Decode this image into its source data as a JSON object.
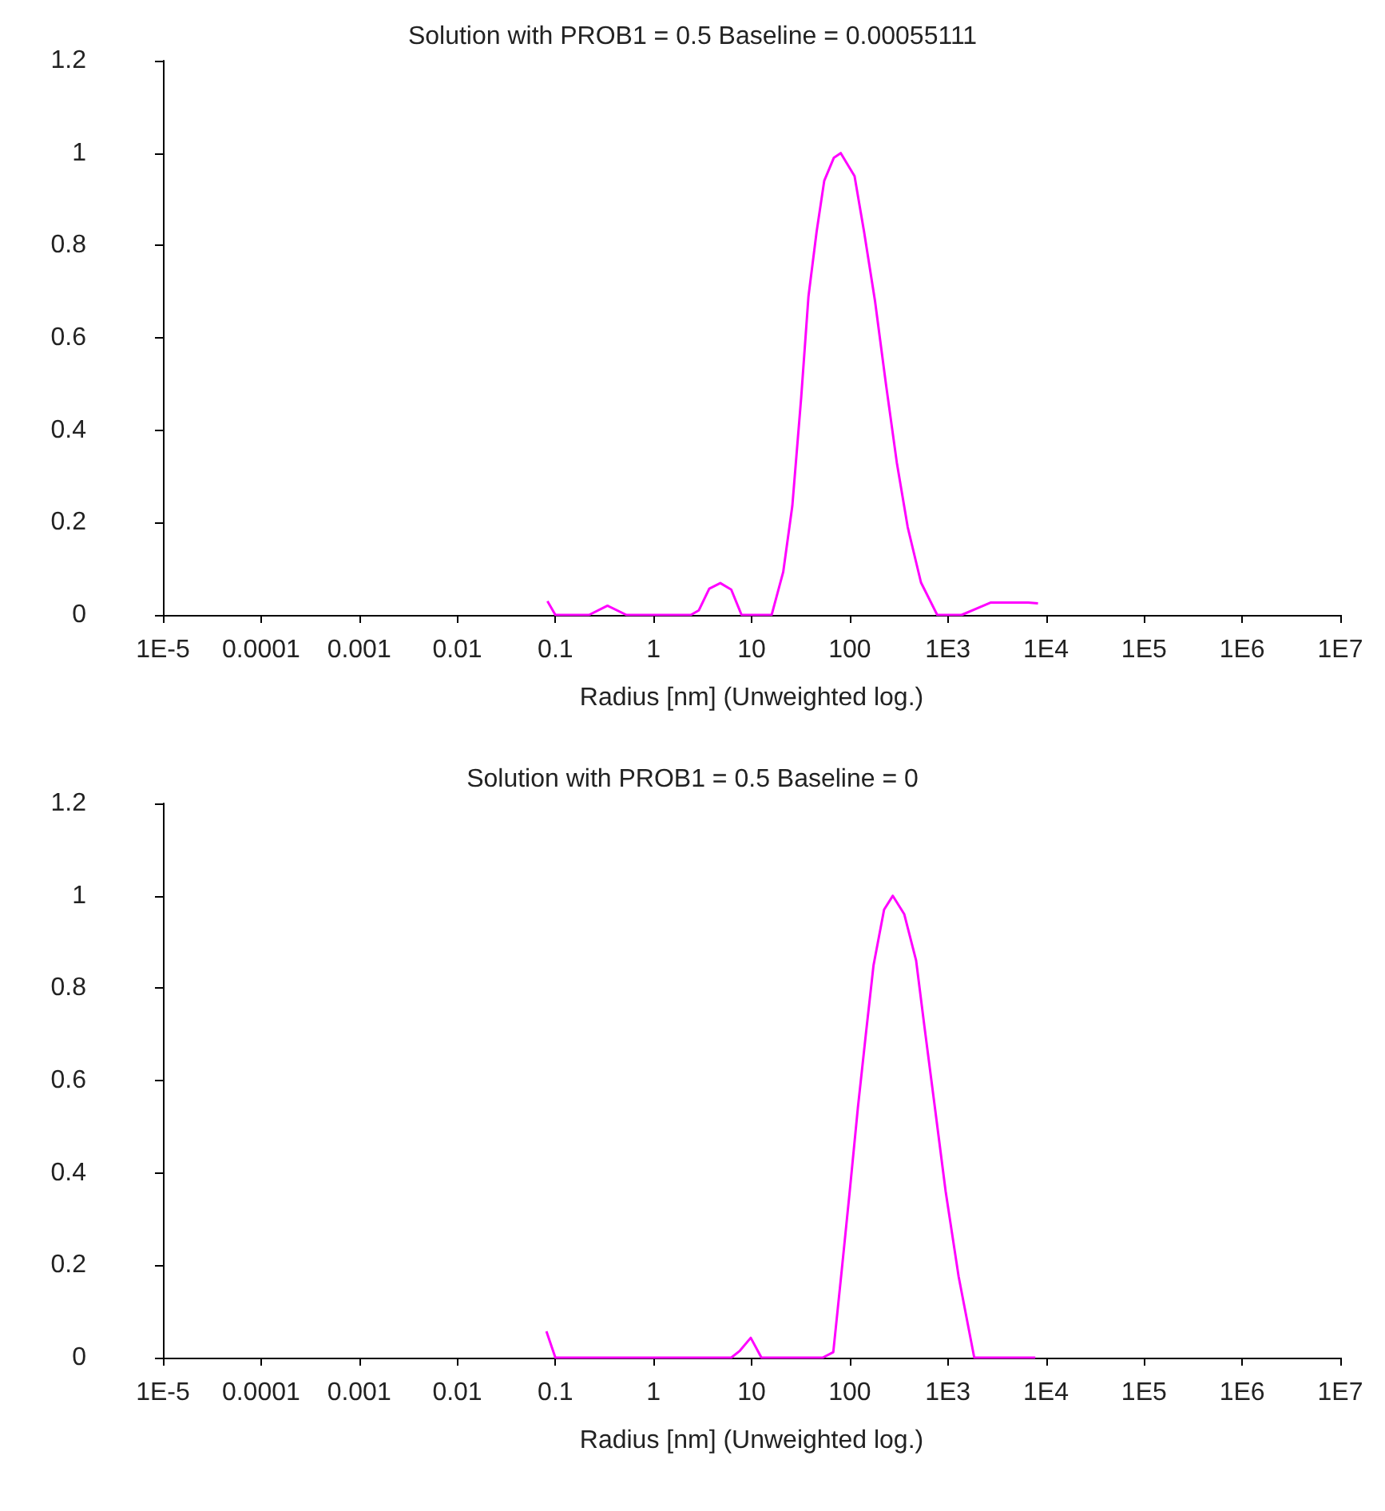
{
  "chart_data": [
    {
      "type": "line",
      "title": "Solution with PROB1 = 0.5 Baseline = 0.00055111",
      "xlabel": "Radius [nm] (Unweighted log.)",
      "log": "x",
      "color": "#ff00ff",
      "x": [
        0.083,
        0.1,
        0.22,
        0.34,
        0.53,
        2.4,
        2.9,
        3.7,
        4.8,
        6.2,
        7.9,
        16,
        21,
        26,
        32,
        38,
        46,
        55,
        69,
        81,
        112,
        140,
        181,
        234,
        302,
        390,
        533,
        780,
        1380,
        2750,
        6600,
        8300
      ],
      "values": [
        0.03,
        0,
        0,
        0.02,
        0,
        0,
        0.01,
        0.057,
        0.069,
        0.055,
        0,
        0,
        0.093,
        0.236,
        0.47,
        0.69,
        0.83,
        0.94,
        0.99,
        1.0,
        0.95,
        0.83,
        0.68,
        0.5,
        0.33,
        0.19,
        0.07,
        0,
        0,
        0.027,
        0.027,
        0.025
      ],
      "xlim": [
        1e-05,
        10000000
      ],
      "xticks": [
        {
          "value": 1e-05,
          "label": "1E-5"
        },
        0.0001,
        0.001,
        0.01,
        0.1,
        1,
        10,
        100,
        {
          "value": 1000,
          "label": "1E3"
        },
        {
          "value": 10000,
          "label": "1E4"
        },
        {
          "value": 100000,
          "label": "1E5"
        },
        {
          "value": 1000000,
          "label": "1E6"
        },
        {
          "value": 10000000,
          "label": "1E7"
        }
      ],
      "ylim": [
        0,
        1.2
      ],
      "yticks": [
        0,
        0.2,
        0.4,
        0.6,
        0.8,
        1,
        1.2
      ]
    },
    {
      "type": "line",
      "title": "Solution with PROB1 = 0.5 Baseline = 0",
      "xlabel": "Radius [nm] (Unweighted log.)",
      "log": "x",
      "color": "#ff00ff",
      "x": [
        0.081,
        0.1,
        6.2,
        7.6,
        9.8,
        12.6,
        53,
        68,
        83,
        100,
        121,
        146,
        175,
        224,
        275,
        360,
        475,
        575,
        740,
        950,
        1290,
        1860,
        7800
      ],
      "values": [
        0.057,
        0,
        0,
        0.015,
        0.043,
        0,
        0,
        0.012,
        0.19,
        0.36,
        0.54,
        0.7,
        0.85,
        0.97,
        1.0,
        0.96,
        0.86,
        0.72,
        0.54,
        0.36,
        0.175,
        0,
        0
      ],
      "xlim": [
        1e-05,
        10000000
      ],
      "xticks": [
        {
          "value": 1e-05,
          "label": "1E-5"
        },
        0.0001,
        0.001,
        0.01,
        0.1,
        1,
        10,
        100,
        {
          "value": 1000,
          "label": "1E3"
        },
        {
          "value": 10000,
          "label": "1E4"
        },
        {
          "value": 100000,
          "label": "1E5"
        },
        {
          "value": 1000000,
          "label": "1E6"
        },
        {
          "value": 10000000,
          "label": "1E7"
        }
      ],
      "ylim": [
        0,
        1.2
      ],
      "yticks": [
        0,
        0.2,
        0.4,
        0.6,
        0.8,
        1,
        1.2
      ]
    }
  ]
}
